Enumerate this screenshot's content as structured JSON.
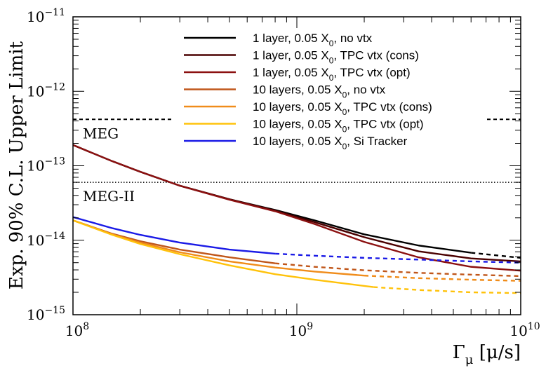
{
  "chart_data": {
    "type": "line",
    "xscale": "log",
    "yscale": "log",
    "xlim": [
      100000000,
      10000000000
    ],
    "ylim": [
      1e-15,
      1e-11
    ],
    "ylabel": "Exp. 90% C.L. Upper Limit",
    "xlabel": {
      "symbol": "Γ",
      "sub": "μ",
      "unit": " [μ/s]"
    },
    "x_ticks": [
      {
        "value": 100000000,
        "base": "10",
        "exp": "8"
      },
      {
        "value": 1000000000,
        "base": "10",
        "exp": "9"
      },
      {
        "value": 10000000000,
        "base": "10",
        "exp": "10"
      }
    ],
    "y_ticks": [
      {
        "value": 1e-11,
        "base": "10",
        "exp": "−11"
      },
      {
        "value": 1e-12,
        "base": "10",
        "exp": "−12"
      },
      {
        "value": 1e-13,
        "base": "10",
        "exp": "−13"
      },
      {
        "value": 1e-14,
        "base": "10",
        "exp": "−14"
      },
      {
        "value": 1e-15,
        "base": "10",
        "exp": "−15"
      }
    ],
    "reference_lines": [
      {
        "label": "MEG",
        "value": 4.2e-13,
        "style": "dashed"
      },
      {
        "label": "MEG-II",
        "value": 6e-14,
        "style": "dotted"
      }
    ],
    "series": [
      {
        "pre": "1 layer, 0.05 X",
        "sub": "0",
        "post": ", no vtx",
        "color": "#000000",
        "solid_until": 6000000000,
        "x": [
          100000000,
          150000000,
          200000000,
          300000000,
          500000000,
          800000000,
          1200000000,
          2000000000,
          3500000000,
          6000000000,
          10000000000
        ],
        "y": [
          1.9e-13,
          1.15e-13,
          8.3e-14,
          5.4e-14,
          3.55e-14,
          2.55e-14,
          1.85e-14,
          1.2e-14,
          8.5e-15,
          6.8e-15,
          5.8e-15
        ]
      },
      {
        "pre": "1 layer, 0.05 X",
        "sub": "0",
        "post": ", TPC vtx (cons)",
        "color": "#4a0000",
        "solid_until": 10000000000,
        "x": [
          100000000,
          150000000,
          200000000,
          300000000,
          500000000,
          800000000,
          1200000000,
          2000000000,
          3500000000,
          6000000000,
          10000000000
        ],
        "y": [
          1.9e-13,
          1.15e-13,
          8.3e-14,
          5.4e-14,
          3.55e-14,
          2.5e-14,
          1.75e-14,
          1.1e-14,
          7.1e-15,
          5.7e-15,
          5.2e-15
        ]
      },
      {
        "pre": "1 layer, 0.05 X",
        "sub": "0",
        "post": ", TPC vtx (opt)",
        "color": "#8b1010",
        "solid_until": 10000000000,
        "x": [
          100000000,
          150000000,
          200000000,
          300000000,
          500000000,
          800000000,
          1200000000,
          2000000000,
          3500000000,
          6000000000,
          10000000000
        ],
        "y": [
          1.9e-13,
          1.15e-13,
          8.3e-14,
          5.4e-14,
          3.5e-14,
          2.45e-14,
          1.65e-14,
          9.5e-15,
          5.9e-15,
          4.4e-15,
          3.9e-15
        ]
      },
      {
        "pre": "10 layers, 0.05 X",
        "sub": "0",
        "post": ", no vtx",
        "color": "#c0561a",
        "solid_until": 800000000,
        "x": [
          100000000,
          150000000,
          200000000,
          300000000,
          500000000,
          800000000,
          1200000000,
          2000000000,
          3500000000,
          6000000000,
          10000000000
        ],
        "y": [
          1.85e-14,
          1.22e-14,
          9.7e-15,
          7.5e-15,
          5.9e-15,
          4.9e-15,
          4.4e-15,
          3.95e-15,
          3.65e-15,
          3.45e-15,
          3.3e-15
        ]
      },
      {
        "pre": "10 layers, 0.05 X",
        "sub": "0",
        "post": ", TPC vtx (cons)",
        "color": "#f08c1a",
        "solid_until": 2000000000,
        "x": [
          100000000,
          150000000,
          200000000,
          300000000,
          500000000,
          800000000,
          1200000000,
          2000000000,
          3500000000,
          6000000000,
          10000000000
        ],
        "y": [
          1.85e-14,
          1.2e-14,
          9.3e-15,
          6.9e-15,
          5.2e-15,
          4.3e-15,
          3.8e-15,
          3.35e-15,
          3.1e-15,
          2.95e-15,
          2.85e-15
        ]
      },
      {
        "pre": "10 layers, 0.05 X",
        "sub": "0",
        "post": ", TPC vtx (opt)",
        "color": "#ffc20a",
        "solid_until": 2200000000,
        "x": [
          100000000,
          150000000,
          200000000,
          300000000,
          500000000,
          800000000,
          1200000000,
          2200000000,
          3500000000,
          6000000000,
          10000000000
        ],
        "y": [
          1.85e-14,
          1.18e-14,
          8.9e-15,
          6.5e-15,
          4.6e-15,
          3.5e-15,
          2.95e-15,
          2.35e-15,
          2.15e-15,
          2e-15,
          1.95e-15
        ]
      },
      {
        "pre": "10 layers, 0.05 X",
        "sub": "0",
        "post": ", Si Tracker",
        "color": "#1a1ae6",
        "solid_until": 800000000,
        "x": [
          100000000,
          150000000,
          200000000,
          300000000,
          500000000,
          800000000,
          1200000000,
          2000000000,
          3500000000,
          6000000000,
          10000000000
        ],
        "y": [
          2.05e-14,
          1.45e-14,
          1.18e-14,
          9.3e-15,
          7.5e-15,
          6.6e-15,
          6.2e-15,
          5.8e-15,
          5.5e-15,
          5.2e-15,
          5e-15
        ]
      }
    ]
  }
}
